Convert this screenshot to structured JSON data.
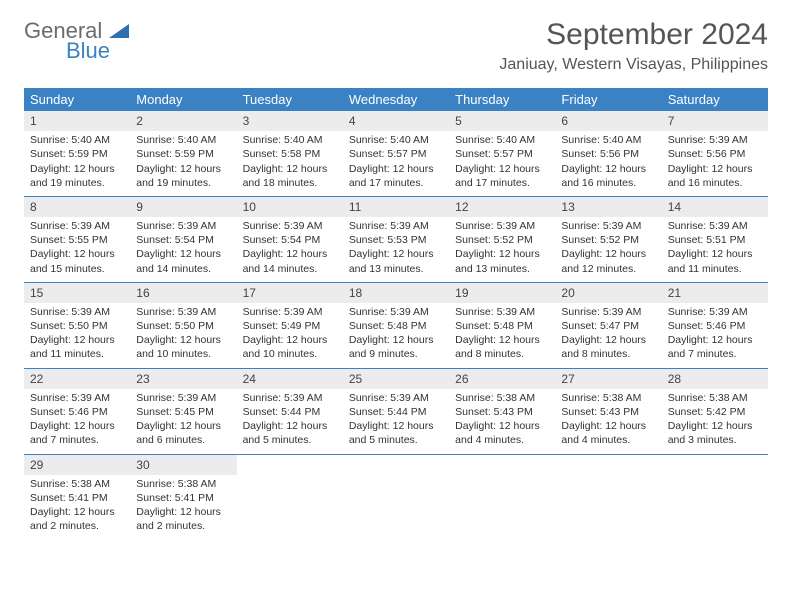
{
  "logo": {
    "word1": "General",
    "word2": "Blue"
  },
  "title": "September 2024",
  "location": "Janiuay, Western Visayas, Philippines",
  "colors": {
    "header_bg": "#3b82c4",
    "header_text": "#ffffff",
    "daynum_bg": "#ececec",
    "text": "#333333",
    "title_color": "#555555"
  },
  "day_names": [
    "Sunday",
    "Monday",
    "Tuesday",
    "Wednesday",
    "Thursday",
    "Friday",
    "Saturday"
  ],
  "weeks": [
    [
      {
        "n": "1",
        "sunrise": "5:40 AM",
        "sunset": "5:59 PM",
        "daylight": "12 hours and 19 minutes."
      },
      {
        "n": "2",
        "sunrise": "5:40 AM",
        "sunset": "5:59 PM",
        "daylight": "12 hours and 19 minutes."
      },
      {
        "n": "3",
        "sunrise": "5:40 AM",
        "sunset": "5:58 PM",
        "daylight": "12 hours and 18 minutes."
      },
      {
        "n": "4",
        "sunrise": "5:40 AM",
        "sunset": "5:57 PM",
        "daylight": "12 hours and 17 minutes."
      },
      {
        "n": "5",
        "sunrise": "5:40 AM",
        "sunset": "5:57 PM",
        "daylight": "12 hours and 17 minutes."
      },
      {
        "n": "6",
        "sunrise": "5:40 AM",
        "sunset": "5:56 PM",
        "daylight": "12 hours and 16 minutes."
      },
      {
        "n": "7",
        "sunrise": "5:39 AM",
        "sunset": "5:56 PM",
        "daylight": "12 hours and 16 minutes."
      }
    ],
    [
      {
        "n": "8",
        "sunrise": "5:39 AM",
        "sunset": "5:55 PM",
        "daylight": "12 hours and 15 minutes."
      },
      {
        "n": "9",
        "sunrise": "5:39 AM",
        "sunset": "5:54 PM",
        "daylight": "12 hours and 14 minutes."
      },
      {
        "n": "10",
        "sunrise": "5:39 AM",
        "sunset": "5:54 PM",
        "daylight": "12 hours and 14 minutes."
      },
      {
        "n": "11",
        "sunrise": "5:39 AM",
        "sunset": "5:53 PM",
        "daylight": "12 hours and 13 minutes."
      },
      {
        "n": "12",
        "sunrise": "5:39 AM",
        "sunset": "5:52 PM",
        "daylight": "12 hours and 13 minutes."
      },
      {
        "n": "13",
        "sunrise": "5:39 AM",
        "sunset": "5:52 PM",
        "daylight": "12 hours and 12 minutes."
      },
      {
        "n": "14",
        "sunrise": "5:39 AM",
        "sunset": "5:51 PM",
        "daylight": "12 hours and 11 minutes."
      }
    ],
    [
      {
        "n": "15",
        "sunrise": "5:39 AM",
        "sunset": "5:50 PM",
        "daylight": "12 hours and 11 minutes."
      },
      {
        "n": "16",
        "sunrise": "5:39 AM",
        "sunset": "5:50 PM",
        "daylight": "12 hours and 10 minutes."
      },
      {
        "n": "17",
        "sunrise": "5:39 AM",
        "sunset": "5:49 PM",
        "daylight": "12 hours and 10 minutes."
      },
      {
        "n": "18",
        "sunrise": "5:39 AM",
        "sunset": "5:48 PM",
        "daylight": "12 hours and 9 minutes."
      },
      {
        "n": "19",
        "sunrise": "5:39 AM",
        "sunset": "5:48 PM",
        "daylight": "12 hours and 8 minutes."
      },
      {
        "n": "20",
        "sunrise": "5:39 AM",
        "sunset": "5:47 PM",
        "daylight": "12 hours and 8 minutes."
      },
      {
        "n": "21",
        "sunrise": "5:39 AM",
        "sunset": "5:46 PM",
        "daylight": "12 hours and 7 minutes."
      }
    ],
    [
      {
        "n": "22",
        "sunrise": "5:39 AM",
        "sunset": "5:46 PM",
        "daylight": "12 hours and 7 minutes."
      },
      {
        "n": "23",
        "sunrise": "5:39 AM",
        "sunset": "5:45 PM",
        "daylight": "12 hours and 6 minutes."
      },
      {
        "n": "24",
        "sunrise": "5:39 AM",
        "sunset": "5:44 PM",
        "daylight": "12 hours and 5 minutes."
      },
      {
        "n": "25",
        "sunrise": "5:39 AM",
        "sunset": "5:44 PM",
        "daylight": "12 hours and 5 minutes."
      },
      {
        "n": "26",
        "sunrise": "5:38 AM",
        "sunset": "5:43 PM",
        "daylight": "12 hours and 4 minutes."
      },
      {
        "n": "27",
        "sunrise": "5:38 AM",
        "sunset": "5:43 PM",
        "daylight": "12 hours and 4 minutes."
      },
      {
        "n": "28",
        "sunrise": "5:38 AM",
        "sunset": "5:42 PM",
        "daylight": "12 hours and 3 minutes."
      }
    ],
    [
      {
        "n": "29",
        "sunrise": "5:38 AM",
        "sunset": "5:41 PM",
        "daylight": "12 hours and 2 minutes."
      },
      {
        "n": "30",
        "sunrise": "5:38 AM",
        "sunset": "5:41 PM",
        "daylight": "12 hours and 2 minutes."
      },
      null,
      null,
      null,
      null,
      null
    ]
  ],
  "labels": {
    "sunrise": "Sunrise:",
    "sunset": "Sunset:",
    "daylight": "Daylight:"
  }
}
